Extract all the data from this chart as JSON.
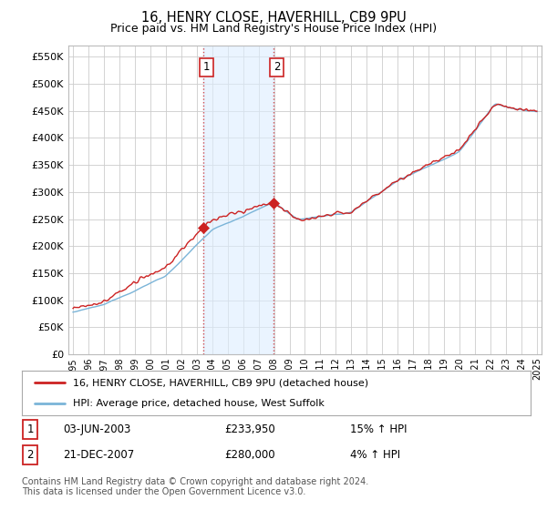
{
  "title": "16, HENRY CLOSE, HAVERHILL, CB9 9PU",
  "subtitle": "Price paid vs. HM Land Registry's House Price Index (HPI)",
  "title_fontsize": 10.5,
  "subtitle_fontsize": 9,
  "ylabel_ticks": [
    "£0",
    "£50K",
    "£100K",
    "£150K",
    "£200K",
    "£250K",
    "£300K",
    "£350K",
    "£400K",
    "£450K",
    "£500K",
    "£550K"
  ],
  "ytick_values": [
    0,
    50000,
    100000,
    150000,
    200000,
    250000,
    300000,
    350000,
    400000,
    450000,
    500000,
    550000
  ],
  "ylim": [
    0,
    570000
  ],
  "xlim_start": 1994.7,
  "xlim_end": 2025.3,
  "hpi_color": "#7ab4d8",
  "price_color": "#cc2222",
  "sale1_date": 2003.42,
  "sale1_price": 233950,
  "sale2_date": 2007.97,
  "sale2_price": 280000,
  "shade_color": "#ddeeff",
  "shade_alpha": 0.6,
  "legend_line1": "16, HENRY CLOSE, HAVERHILL, CB9 9PU (detached house)",
  "legend_line2": "HPI: Average price, detached house, West Suffolk",
  "table_row1_num": "1",
  "table_row1_date": "03-JUN-2003",
  "table_row1_price": "£233,950",
  "table_row1_hpi": "15% ↑ HPI",
  "table_row2_num": "2",
  "table_row2_date": "21-DEC-2007",
  "table_row2_price": "£280,000",
  "table_row2_hpi": "4% ↑ HPI",
  "footer": "Contains HM Land Registry data © Crown copyright and database right 2024.\nThis data is licensed under the Open Government Licence v3.0.",
  "background_color": "#ffffff"
}
